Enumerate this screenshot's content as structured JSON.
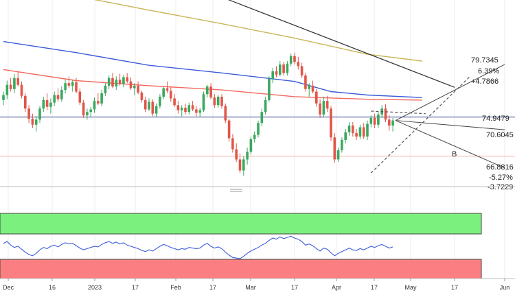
{
  "chart_data": {
    "type": "candlestick",
    "x_ticks": [
      "Dec",
      "16",
      "2023",
      "17",
      "Feb",
      "17",
      "Mar",
      "17",
      "Apr",
      "17",
      "May",
      "17",
      "Jun"
    ],
    "price_labels": {
      "upper_box": [
        "79.7345",
        "6.39%",
        "+4.7866"
      ],
      "mid_level": "74.9479",
      "current_level": "70.6045",
      "lower_box": [
        "66.8816",
        "-5.27%",
        "-3.7229"
      ]
    },
    "annotation": "B",
    "y_range": [
      64,
      86
    ],
    "horizontal_levels": {
      "blue_line": 72.2,
      "red_line": 67.6
    },
    "candles": [
      [
        74.2,
        75.2,
        73.6,
        74.8
      ],
      [
        74.8,
        76.5,
        74.3,
        76.0
      ],
      [
        76.0,
        76.8,
        75.2,
        75.5
      ],
      [
        75.5,
        77.3,
        75.0,
        76.8
      ],
      [
        76.8,
        77.5,
        75.8,
        76.0
      ],
      [
        76.0,
        76.4,
        74.4,
        74.7
      ],
      [
        74.7,
        75.0,
        72.8,
        73.2
      ],
      [
        73.2,
        73.6,
        71.5,
        72.0
      ],
      [
        72.0,
        72.6,
        70.9,
        71.3
      ],
      [
        71.3,
        72.3,
        70.5,
        71.9
      ],
      [
        71.9,
        73.5,
        71.5,
        73.2
      ],
      [
        73.2,
        74.6,
        72.8,
        74.2
      ],
      [
        74.2,
        75.0,
        73.0,
        73.4
      ],
      [
        73.4,
        74.4,
        72.6,
        73.9
      ],
      [
        73.9,
        75.2,
        73.5,
        74.8
      ],
      [
        74.8,
        75.6,
        74.0,
        74.3
      ],
      [
        74.3,
        75.8,
        74.0,
        75.4
      ],
      [
        75.4,
        76.6,
        75.0,
        76.2
      ],
      [
        76.2,
        77.0,
        75.6,
        75.9
      ],
      [
        75.9,
        76.6,
        75.2,
        76.3
      ],
      [
        76.3,
        76.8,
        75.0,
        75.2
      ],
      [
        75.2,
        75.6,
        73.6,
        73.9
      ],
      [
        73.9,
        74.2,
        72.1,
        72.4
      ],
      [
        72.4,
        73.2,
        71.9,
        72.8
      ],
      [
        72.8,
        73.4,
        72.2,
        73.1
      ],
      [
        73.1,
        74.5,
        72.7,
        74.1
      ],
      [
        74.1,
        75.0,
        73.6,
        73.8
      ],
      [
        73.8,
        75.4,
        73.5,
        75.0
      ],
      [
        75.0,
        76.2,
        74.7,
        75.9
      ],
      [
        75.9,
        77.1,
        75.5,
        76.8
      ],
      [
        76.8,
        77.4,
        75.6,
        75.8
      ],
      [
        75.8,
        77.0,
        75.4,
        76.6
      ],
      [
        76.6,
        77.3,
        75.9,
        76.1
      ],
      [
        76.1,
        77.2,
        75.7,
        76.9
      ],
      [
        76.9,
        77.4,
        76.2,
        76.4
      ],
      [
        76.4,
        76.9,
        75.4,
        75.6
      ],
      [
        75.6,
        76.2,
        74.8,
        75.9
      ],
      [
        75.9,
        76.4,
        74.9,
        75.1
      ],
      [
        75.1,
        75.3,
        73.9,
        74.2
      ],
      [
        74.2,
        74.6,
        72.8,
        73.1
      ],
      [
        73.1,
        74.4,
        72.9,
        74.0
      ],
      [
        74.0,
        74.3,
        72.3,
        72.6
      ],
      [
        72.6,
        73.8,
        72.2,
        73.5
      ],
      [
        73.5,
        74.9,
        73.2,
        74.6
      ],
      [
        74.6,
        75.8,
        74.3,
        75.6
      ],
      [
        75.6,
        76.4,
        75.0,
        75.3
      ],
      [
        75.3,
        75.7,
        74.0,
        74.4
      ],
      [
        74.4,
        74.9,
        73.4,
        73.6
      ],
      [
        73.6,
        74.1,
        72.6,
        73.0
      ],
      [
        73.0,
        73.6,
        72.3,
        73.3
      ],
      [
        73.3,
        73.8,
        72.5,
        72.8
      ],
      [
        72.8,
        73.9,
        72.5,
        73.6
      ],
      [
        73.6,
        74.1,
        72.9,
        73.1
      ],
      [
        73.1,
        73.5,
        72.3,
        72.7
      ],
      [
        72.7,
        73.3,
        72.2,
        73.0
      ],
      [
        73.0,
        75.2,
        72.8,
        74.9
      ],
      [
        74.9,
        76.0,
        74.5,
        75.8
      ],
      [
        75.8,
        76.2,
        74.3,
        74.5
      ],
      [
        74.5,
        74.9,
        73.3,
        73.6
      ],
      [
        73.6,
        74.8,
        73.3,
        74.6
      ],
      [
        74.6,
        74.9,
        73.2,
        73.5
      ],
      [
        73.5,
        73.8,
        71.5,
        71.8
      ],
      [
        71.8,
        72.0,
        69.3,
        69.7
      ],
      [
        69.7,
        70.2,
        68.0,
        68.4
      ],
      [
        68.4,
        69.1,
        66.9,
        67.2
      ],
      [
        67.2,
        67.9,
        65.6,
        65.9
      ],
      [
        65.9,
        67.6,
        65.3,
        67.2
      ],
      [
        67.2,
        68.6,
        66.6,
        68.1
      ],
      [
        68.1,
        69.9,
        67.8,
        69.6
      ],
      [
        69.6,
        70.5,
        69.2,
        70.1
      ],
      [
        70.1,
        71.8,
        69.8,
        71.5
      ],
      [
        71.5,
        73.2,
        71.1,
        72.8
      ],
      [
        72.8,
        74.6,
        72.5,
        74.2
      ],
      [
        74.2,
        77.0,
        74.0,
        76.7
      ],
      [
        76.7,
        78.0,
        76.2,
        77.6
      ],
      [
        77.6,
        78.2,
        76.9,
        77.2
      ],
      [
        77.2,
        78.8,
        77.0,
        78.4
      ],
      [
        78.4,
        78.7,
        77.1,
        77.4
      ],
      [
        77.4,
        78.8,
        77.1,
        78.5
      ],
      [
        78.5,
        79.7,
        78.2,
        79.4
      ],
      [
        79.4,
        79.8,
        78.4,
        78.7
      ],
      [
        78.7,
        79.3,
        77.8,
        78.2
      ],
      [
        78.2,
        78.6,
        76.8,
        77.1
      ],
      [
        77.1,
        77.4,
        75.2,
        75.5
      ],
      [
        75.5,
        76.2,
        74.6,
        75.9
      ],
      [
        75.9,
        76.5,
        75.0,
        75.2
      ],
      [
        75.2,
        75.5,
        73.4,
        73.8
      ],
      [
        73.8,
        74.3,
        72.1,
        72.5
      ],
      [
        72.5,
        74.6,
        72.2,
        74.1
      ],
      [
        74.1,
        74.7,
        72.8,
        73.2
      ],
      [
        73.2,
        73.5,
        69.4,
        69.8
      ],
      [
        69.8,
        70.3,
        66.8,
        67.2
      ],
      [
        67.2,
        68.6,
        66.9,
        68.3
      ],
      [
        68.3,
        69.8,
        68.0,
        69.5
      ],
      [
        69.5,
        70.8,
        69.1,
        70.4
      ],
      [
        70.4,
        71.6,
        70.0,
        71.2
      ],
      [
        71.2,
        71.6,
        69.9,
        70.3
      ],
      [
        70.3,
        70.8,
        69.5,
        69.9
      ],
      [
        69.9,
        71.3,
        69.6,
        71.0
      ],
      [
        71.0,
        71.5,
        69.6,
        69.9
      ],
      [
        69.9,
        71.8,
        69.5,
        71.4
      ],
      [
        71.4,
        72.4,
        71.0,
        72.1
      ],
      [
        72.1,
        72.6,
        70.9,
        71.3
      ],
      [
        71.3,
        72.8,
        70.9,
        72.5
      ],
      [
        72.5,
        73.6,
        72.1,
        73.2
      ],
      [
        73.2,
        73.7,
        71.6,
        71.9
      ],
      [
        71.9,
        72.4,
        70.6,
        71.2
      ],
      [
        71.2,
        72.1,
        70.5,
        71.8
      ]
    ],
    "moving_averages": [
      {
        "name": "red-ma",
        "color": "#f2675c",
        "points": [
          [
            0,
            77.8
          ],
          [
            20,
            76.5
          ],
          [
            40,
            75.9
          ],
          [
            60,
            75.4
          ],
          [
            80,
            74.6
          ],
          [
            100,
            74.3
          ],
          [
            115,
            74.2
          ]
        ]
      },
      {
        "name": "blue-ma",
        "color": "#3a5bd9",
        "points": [
          [
            0,
            81.1
          ],
          [
            20,
            79.8
          ],
          [
            40,
            78.3
          ],
          [
            60,
            77.4
          ],
          [
            80,
            76.4
          ],
          [
            90,
            75.2
          ],
          [
            100,
            74.8
          ],
          [
            115,
            74.5
          ]
        ]
      },
      {
        "name": "olive-ma",
        "color": "#c8b455",
        "points": [
          [
            22,
            86.3
          ],
          [
            40,
            84.8
          ],
          [
            60,
            83.2
          ],
          [
            80,
            81.5
          ],
          [
            100,
            79.6
          ],
          [
            115,
            78.8
          ]
        ]
      }
    ],
    "trendlines": [
      {
        "name": "descending-resistance",
        "color": "#333333",
        "style": "solid",
        "from": [
          50,
          88.0
        ],
        "to": [
          124,
          75.7
        ]
      },
      {
        "name": "ascending-support",
        "color": "#555555",
        "style": "dashed",
        "from": [
          101,
          65.6
        ],
        "to": [
          128,
          76.9
        ]
      },
      {
        "name": "flat-resistance",
        "color": "#555555",
        "style": "dashed",
        "from": [
          101,
          72.9
        ],
        "to": [
          116,
          72.6
        ]
      }
    ],
    "oscillator": {
      "name": "rsi",
      "values": [
        55,
        58,
        52,
        48,
        50,
        45,
        40,
        36,
        34,
        38,
        44,
        48,
        46,
        50,
        52,
        49,
        53,
        56,
        54,
        55,
        51,
        47,
        44,
        46,
        48,
        50,
        49,
        53,
        56,
        58,
        55,
        57,
        54,
        56,
        52,
        50,
        48,
        46,
        43,
        41,
        44,
        42,
        46,
        50,
        53,
        51,
        48,
        46,
        44,
        46,
        45,
        48,
        47,
        46,
        47,
        52,
        55,
        50,
        47,
        49,
        46,
        40,
        35,
        31,
        30,
        29,
        33,
        38,
        42,
        45,
        48,
        52,
        55,
        60,
        64,
        62,
        66,
        63,
        65,
        67,
        64,
        62,
        58,
        52,
        54,
        51,
        46,
        42,
        47,
        45,
        39,
        34,
        38,
        41,
        44,
        47,
        44,
        43,
        46,
        44,
        47,
        50,
        48,
        51,
        53,
        50,
        47,
        49
      ]
    }
  }
}
